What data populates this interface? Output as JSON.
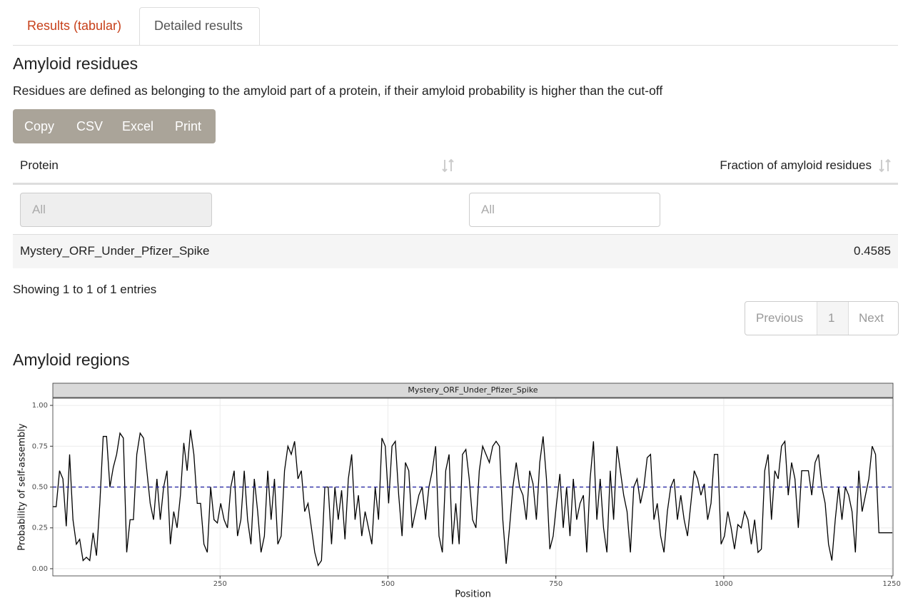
{
  "tabs": [
    "Results (tabular)",
    "Detailed results"
  ],
  "section_residues": {
    "title": "Amyloid residues",
    "description": "Residues are defined as belonging to the amyloid part of a protein, if their amyloid probability is higher than the cut-off"
  },
  "buttons": [
    "Copy",
    "CSV",
    "Excel",
    "Print"
  ],
  "table": {
    "columns": [
      "Protein",
      "Fraction of amyloid residues"
    ],
    "filters": [
      "All",
      "All"
    ],
    "rows": [
      [
        "Mystery_ORF_Under_Pfizer_Spike",
        0.4585
      ]
    ]
  },
  "info": "Showing 1 to 1 of 1 entries",
  "pagination": [
    "Previous",
    "1",
    "Next"
  ],
  "section_regions": {
    "title": "Amyloid regions"
  },
  "chart_data": {
    "type": "line",
    "strip": "Mystery_ORF_Under_Pfizer_Spike",
    "x_label": "Position",
    "y_label": "Probability of self-assembly",
    "color": "#000000",
    "threshold": 0.5,
    "threshold_color": "#1a1a9e",
    "grid": true,
    "xlim": [
      1,
      1252
    ],
    "xticks": [
      250,
      500,
      750,
      1000,
      1250
    ],
    "ylim": [
      -0.044,
      1.044
    ],
    "yticks": [
      {
        "value": 0,
        "label": "0.00"
      },
      {
        "value": 0.25,
        "label": "0.25"
      },
      {
        "value": 0.5,
        "label": "0.50"
      },
      {
        "value": 0.75,
        "label": "0.75"
      },
      {
        "value": 1,
        "label": "1.00"
      }
    ],
    "x": [
      1,
      6,
      11,
      16,
      21,
      26,
      31,
      36,
      41,
      46,
      51,
      56,
      61,
      66,
      71,
      76,
      81,
      86,
      91,
      96,
      101,
      106,
      111,
      116,
      121,
      126,
      131,
      136,
      141,
      146,
      151,
      156,
      161,
      166,
      171,
      176,
      181,
      186,
      191,
      196,
      201,
      206,
      211,
      216,
      221,
      226,
      231,
      236,
      241,
      246,
      251,
      256,
      261,
      266,
      271,
      276,
      281,
      286,
      291,
      296,
      301,
      306,
      311,
      316,
      321,
      326,
      331,
      336,
      341,
      346,
      351,
      356,
      361,
      366,
      371,
      376,
      381,
      386,
      391,
      396,
      401,
      406,
      411,
      416,
      421,
      426,
      431,
      436,
      441,
      446,
      451,
      456,
      461,
      466,
      471,
      476,
      481,
      486,
      491,
      496,
      501,
      506,
      511,
      516,
      521,
      526,
      531,
      536,
      541,
      546,
      551,
      556,
      561,
      566,
      571,
      576,
      581,
      586,
      591,
      596,
      601,
      606,
      611,
      616,
      621,
      626,
      631,
      636,
      641,
      646,
      651,
      656,
      661,
      666,
      671,
      676,
      681,
      686,
      691,
      696,
      701,
      706,
      711,
      716,
      721,
      726,
      731,
      736,
      741,
      746,
      751,
      756,
      761,
      766,
      771,
      776,
      781,
      786,
      791,
      796,
      801,
      806,
      811,
      816,
      821,
      826,
      831,
      836,
      841,
      846,
      851,
      856,
      861,
      866,
      871,
      876,
      881,
      886,
      891,
      896,
      901,
      906,
      911,
      916,
      921,
      926,
      931,
      936,
      941,
      946,
      951,
      956,
      961,
      966,
      971,
      976,
      981,
      986,
      991,
      996,
      1001,
      1006,
      1011,
      1016,
      1021,
      1026,
      1031,
      1036,
      1041,
      1046,
      1051,
      1056,
      1061,
      1066,
      1071,
      1076,
      1081,
      1086,
      1091,
      1096,
      1101,
      1106,
      1111,
      1116,
      1121,
      1126,
      1131,
      1136,
      1141,
      1146,
      1151,
      1156,
      1161,
      1166,
      1171,
      1176,
      1181,
      1186,
      1191,
      1196,
      1201,
      1206,
      1211,
      1216,
      1221,
      1226,
      1231,
      1236,
      1241,
      1246,
      1251
    ],
    "values": [
      0.38,
      0.38,
      0.6,
      0.55,
      0.26,
      0.7,
      0.3,
      0.15,
      0.18,
      0.05,
      0.07,
      0.05,
      0.22,
      0.08,
      0.4,
      0.81,
      0.81,
      0.5,
      0.62,
      0.7,
      0.83,
      0.8,
      0.1,
      0.3,
      0.3,
      0.7,
      0.83,
      0.8,
      0.6,
      0.4,
      0.3,
      0.55,
      0.3,
      0.5,
      0.6,
      0.15,
      0.35,
      0.25,
      0.45,
      0.77,
      0.6,
      0.85,
      0.7,
      0.4,
      0.4,
      0.15,
      0.1,
      0.5,
      0.3,
      0.28,
      0.4,
      0.3,
      0.25,
      0.5,
      0.6,
      0.2,
      0.3,
      0.6,
      0.3,
      0.15,
      0.55,
      0.35,
      0.1,
      0.2,
      0.6,
      0.3,
      0.55,
      0.15,
      0.2,
      0.6,
      0.75,
      0.7,
      0.78,
      0.55,
      0.6,
      0.35,
      0.4,
      0.25,
      0.1,
      0.02,
      0.05,
      0.5,
      0.5,
      0.15,
      0.5,
      0.3,
      0.48,
      0.18,
      0.55,
      0.7,
      0.3,
      0.45,
      0.2,
      0.35,
      0.25,
      0.15,
      0.5,
      0.3,
      0.8,
      0.75,
      0.4,
      0.75,
      0.78,
      0.45,
      0.2,
      0.65,
      0.6,
      0.25,
      0.35,
      0.45,
      0.5,
      0.3,
      0.5,
      0.6,
      0.75,
      0.2,
      0.1,
      0.6,
      0.7,
      0.15,
      0.4,
      0.15,
      0.7,
      0.73,
      0.55,
      0.3,
      0.25,
      0.6,
      0.75,
      0.7,
      0.65,
      0.75,
      0.78,
      0.75,
      0.3,
      0.03,
      0.25,
      0.5,
      0.65,
      0.5,
      0.45,
      0.3,
      0.6,
      0.52,
      0.3,
      0.65,
      0.81,
      0.55,
      0.12,
      0.2,
      0.4,
      0.58,
      0.25,
      0.5,
      0.2,
      0.55,
      0.3,
      0.4,
      0.45,
      0.1,
      0.55,
      0.78,
      0.3,
      0.55,
      0.25,
      0.1,
      0.6,
      0.3,
      0.75,
      0.6,
      0.45,
      0.35,
      0.1,
      0.5,
      0.55,
      0.4,
      0.5,
      0.68,
      0.7,
      0.3,
      0.4,
      0.2,
      0.1,
      0.35,
      0.5,
      0.55,
      0.3,
      0.45,
      0.3,
      0.2,
      0.4,
      0.6,
      0.55,
      0.45,
      0.52,
      0.3,
      0.4,
      0.7,
      0.7,
      0.15,
      0.2,
      0.35,
      0.25,
      0.12,
      0.27,
      0.25,
      0.35,
      0.3,
      0.15,
      0.3,
      0.1,
      0.12,
      0.6,
      0.7,
      0.3,
      0.6,
      0.55,
      0.75,
      0.78,
      0.45,
      0.65,
      0.55,
      0.25,
      0.6,
      0.6,
      0.6,
      0.45,
      0.65,
      0.7,
      0.5,
      0.4,
      0.15,
      0.05,
      0.3,
      0.5,
      0.3,
      0.5,
      0.45,
      0.35,
      0.1,
      0.6,
      0.35,
      0.45,
      0.55,
      0.75,
      0.7,
      0.22,
      0.22,
      0.22,
      0.22,
      0.22
    ]
  }
}
